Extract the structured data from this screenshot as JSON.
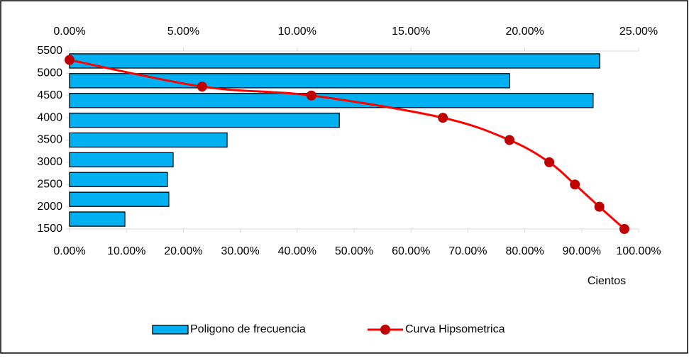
{
  "chart_data": {
    "type": "combo",
    "series": [
      {
        "name": "Poligono de frecuencia",
        "type": "bar",
        "axis": "x2",
        "color": "#00B0F0",
        "values": [
          23.29,
          19.33,
          23.0,
          11.85,
          6.92,
          4.55,
          4.3,
          4.36,
          2.43
        ]
      },
      {
        "name": "Curva Hipsometrica",
        "type": "line",
        "color": "#FF0000",
        "marker_color": "#C00000",
        "x": [
          0,
          23.3,
          42.5,
          65.6,
          77.3,
          84.3,
          88.8,
          93.1,
          97.5
        ],
        "values": [
          5300,
          4700,
          4500,
          4000,
          3500,
          3000,
          2500,
          2000,
          1500
        ]
      }
    ],
    "xlim": [
      0,
      100
    ],
    "xticks": [
      {
        "value": 0,
        "label": "0.00%"
      },
      {
        "value": 10,
        "label": "10.00%"
      },
      {
        "value": 20,
        "label": "20.00%"
      },
      {
        "value": 30,
        "label": "30.00%"
      },
      {
        "value": 40,
        "label": "40.00%"
      },
      {
        "value": 50,
        "label": "50.00%"
      },
      {
        "value": 60,
        "label": "60.00%"
      },
      {
        "value": 70,
        "label": "70.00%"
      },
      {
        "value": 80,
        "label": "80.00%"
      },
      {
        "value": 90,
        "label": "90.00%"
      },
      {
        "value": 100,
        "label": "100.00%"
      }
    ],
    "x2lim": [
      0,
      25
    ],
    "x2ticks": [
      {
        "value": 0,
        "label": "0.00%"
      },
      {
        "value": 5,
        "label": "5.00%"
      },
      {
        "value": 10,
        "label": "10.00%"
      },
      {
        "value": 15,
        "label": "15.00%"
      },
      {
        "value": 20,
        "label": "20.00%"
      },
      {
        "value": 25,
        "label": "25.00%"
      }
    ],
    "ylim": [
      1500,
      5500
    ],
    "yticks": [
      1500,
      2000,
      2500,
      3000,
      3500,
      4000,
      4500,
      5000,
      5500
    ],
    "xlabel": "Cientos",
    "legend": "bottom"
  }
}
